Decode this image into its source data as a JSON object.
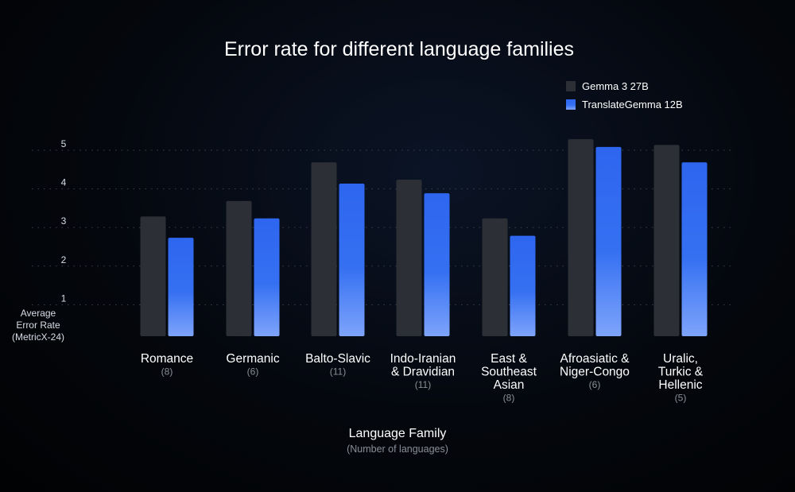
{
  "chart_data": {
    "type": "bar",
    "title": "Error rate for different language families",
    "ylabel": [
      "Average",
      "Error Rate",
      "(MetricX-24)"
    ],
    "xlabel": "Language Family",
    "xlabel_sub": "(Number of languages)",
    "ylim": [
      0,
      5
    ],
    "yticks": [
      1,
      2,
      3,
      4,
      5
    ],
    "grid": true,
    "legend_position": "top-right",
    "categories": [
      {
        "lines": [
          "Romance"
        ],
        "count": "(8)"
      },
      {
        "lines": [
          "Germanic"
        ],
        "count": "(6)"
      },
      {
        "lines": [
          "Balto-Slavic"
        ],
        "count": "(11)"
      },
      {
        "lines": [
          "Indo-Iranian",
          "& Dravidian"
        ],
        "count": "(11)"
      },
      {
        "lines": [
          "East &",
          "Southeast",
          "Asian"
        ],
        "count": "(8)"
      },
      {
        "lines": [
          "Afroasiatic &",
          "Niger-Congo"
        ],
        "count": "(6)"
      },
      {
        "lines": [
          "Uralic,",
          "Turkic &",
          "Hellenic"
        ],
        "count": "(5)"
      }
    ],
    "series": [
      {
        "name": "Gemma 3 27B",
        "color": "#2c3036",
        "values": [
          3.1,
          3.5,
          4.5,
          4.05,
          3.05,
          5.1,
          4.95
        ]
      },
      {
        "name": "TranslateGemma 12B",
        "color": "#2f6af0",
        "values": [
          2.55,
          3.05,
          3.95,
          3.7,
          2.6,
          4.9,
          4.5
        ]
      }
    ]
  }
}
